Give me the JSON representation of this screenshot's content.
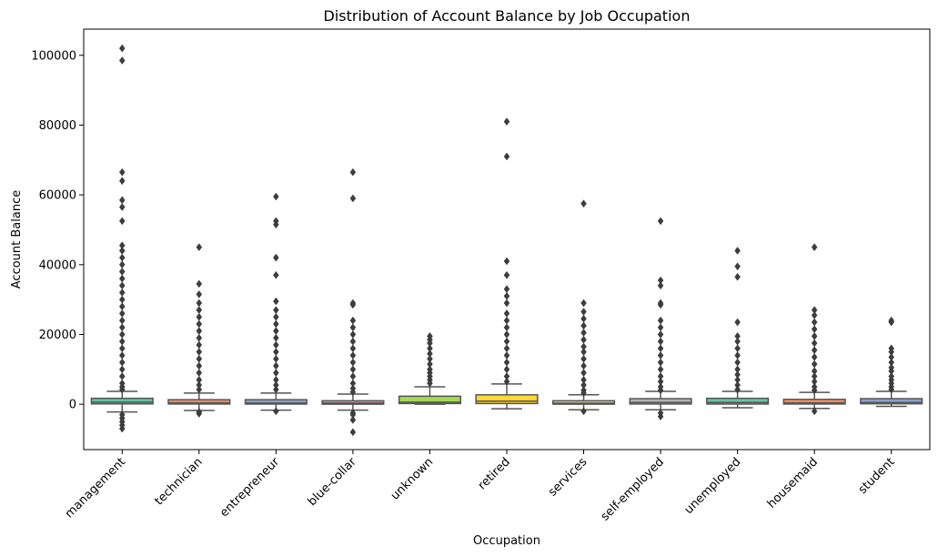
{
  "chart_data": {
    "type": "box",
    "title": "Distribution of Account Balance by Job Occupation",
    "xlabel": "Occupation",
    "ylabel": "Account Balance",
    "ylim": [
      -13000,
      107500
    ],
    "yticks": [
      0,
      20000,
      40000,
      60000,
      80000,
      100000
    ],
    "grid": false,
    "categories": [
      "management",
      "technician",
      "entrepreneur",
      "blue-collar",
      "unknown",
      "retired",
      "services",
      "self-employed",
      "unemployed",
      "housemaid",
      "student"
    ],
    "colors": [
      "#66c2a5",
      "#fc8d62",
      "#8da0cb",
      "#e78ac3",
      "#a6d854",
      "#ffd92f",
      "#e5c494",
      "#b3b3b3",
      "#66c2a5",
      "#fc8d62",
      "#8da0cb"
    ],
    "boxes": [
      {
        "q1": 100,
        "median": 600,
        "q3": 1700,
        "wlow": -2200,
        "whigh": 3700,
        "outliers": [
          102000,
          98500,
          66500,
          64000,
          58500,
          56500,
          52500,
          45500,
          44000,
          42000,
          40000,
          38000,
          36000,
          34000,
          32000,
          30000,
          28000,
          26000,
          24000,
          22000,
          20000,
          18000,
          16000,
          14000,
          12000,
          10000,
          8000,
          6000,
          5000,
          4200,
          -3000,
          -4000,
          -5000,
          -6000,
          -7000
        ]
      },
      {
        "q1": 60,
        "median": 400,
        "q3": 1300,
        "wlow": -1800,
        "whigh": 3200,
        "outliers": [
          45000,
          34500,
          31500,
          29000,
          27000,
          25000,
          23000,
          21000,
          19000,
          17000,
          15000,
          13000,
          11000,
          9000,
          7000,
          5500,
          4200,
          -2200,
          -2700
        ]
      },
      {
        "q1": 50,
        "median": 350,
        "q3": 1300,
        "wlow": -1700,
        "whigh": 3200,
        "outliers": [
          59500,
          52500,
          51500,
          42000,
          37000,
          29500,
          27000,
          25000,
          23000,
          21000,
          19000,
          17000,
          15000,
          13000,
          11000,
          9000,
          7000,
          5500,
          4200,
          -2000
        ]
      },
      {
        "q1": 10,
        "median": 350,
        "q3": 1000,
        "wlow": -1700,
        "whigh": 2900,
        "outliers": [
          66500,
          59000,
          29000,
          28500,
          24000,
          22000,
          20000,
          18000,
          16000,
          14000,
          12000,
          10000,
          8000,
          6000,
          4500,
          3500,
          -2500,
          -3000,
          -4500,
          -8000
        ]
      },
      {
        "q1": 200,
        "median": 600,
        "q3": 2300,
        "wlow": 0,
        "whigh": 5000,
        "outliers": [
          19500,
          18500,
          17500,
          16000,
          14500,
          13000,
          11500,
          10000,
          9000,
          8000,
          7000,
          6000
        ]
      },
      {
        "q1": 200,
        "median": 900,
        "q3": 2700,
        "wlow": -1300,
        "whigh": 5800,
        "outliers": [
          81000,
          71000,
          41000,
          37000,
          33000,
          31000,
          29000,
          26000,
          24000,
          22000,
          20000,
          18000,
          16000,
          14000,
          12000,
          10000,
          8000,
          6500
        ]
      },
      {
        "q1": 20,
        "median": 300,
        "q3": 1000,
        "wlow": -1600,
        "whigh": 2700,
        "outliers": [
          57500,
          29000,
          26500,
          24500,
          22500,
          20500,
          18500,
          16500,
          15000,
          13000,
          11000,
          9000,
          7000,
          5500,
          4000,
          3200,
          -2000
        ]
      },
      {
        "q1": 60,
        "median": 500,
        "q3": 1600,
        "wlow": -1600,
        "whigh": 3700,
        "outliers": [
          52500,
          35500,
          34000,
          29000,
          28500,
          24000,
          22000,
          20000,
          18000,
          16000,
          14000,
          12000,
          10000,
          8000,
          6500,
          5000,
          4000,
          -2500,
          -3500
        ]
      },
      {
        "q1": 50,
        "median": 500,
        "q3": 1700,
        "wlow": -1000,
        "whigh": 3700,
        "outliers": [
          44000,
          39500,
          36500,
          23500,
          19500,
          18000,
          16000,
          14000,
          12000,
          10000,
          8500,
          7000,
          5500,
          4200
        ]
      },
      {
        "q1": 60,
        "median": 400,
        "q3": 1400,
        "wlow": -1200,
        "whigh": 3400,
        "outliers": [
          45000,
          27000,
          25500,
          23500,
          21500,
          19500,
          17500,
          15500,
          13500,
          11500,
          9500,
          8000,
          6500,
          5000,
          4000,
          -2000
        ]
      },
      {
        "q1": 130,
        "median": 500,
        "q3": 1600,
        "wlow": -600,
        "whigh": 3700,
        "outliers": [
          24000,
          23500,
          16000,
          15000,
          13500,
          12000,
          10500,
          9500,
          8000,
          7000,
          6000,
          5000,
          4200
        ]
      }
    ]
  }
}
